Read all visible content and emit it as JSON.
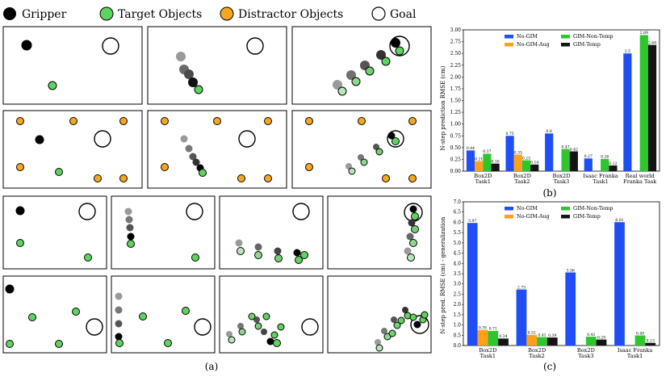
{
  "legend": {
    "items": [
      {
        "label": "Gripper",
        "color": "#000000"
      },
      {
        "label": "Target Objects",
        "color": "#5fd35f"
      },
      {
        "label": "Distractor Objects",
        "color": "#f5a623"
      },
      {
        "label": "Goal",
        "color": "#ffffff"
      }
    ]
  },
  "captions": {
    "a": "(a)",
    "b": "(b)",
    "c": "(c)"
  },
  "colors": {
    "no_gim": "#1f4ef5",
    "no_gim_aug": "#ff9f1a",
    "gim_non_temp": "#2ec52e",
    "gim_temp": "#141414",
    "gripper": "#000000",
    "target": "#5fd35f",
    "distractor": "#f5a623"
  },
  "chart_data": [
    {
      "type": "bar",
      "id": "b",
      "ylabel": "N-step prediction RMSE (cm)",
      "ylim": [
        0,
        3.0
      ],
      "yticks": [
        "0.00",
        "0.25",
        "0.50",
        "0.75",
        "1.00",
        "1.25",
        "1.50",
        "1.75",
        "2.00",
        "2.25",
        "2.50",
        "2.75",
        "3.00"
      ],
      "categories": [
        [
          "Box2D",
          "Task1"
        ],
        [
          "Box2D",
          "Task2"
        ],
        [
          "Box2D",
          "Task3"
        ],
        [
          "Isaac Franka",
          "Task1"
        ],
        [
          "Real world",
          "Franka Task"
        ]
      ],
      "series": [
        {
          "name": "No-GIM",
          "values": [
            0.44,
            0.75,
            0.8,
            0.27,
            2.5
          ],
          "labels": [
            "0.44",
            "0.75",
            "0.8",
            "0.27",
            "2.5"
          ]
        },
        {
          "name": "No-GIM-Aug",
          "values": [
            0.21,
            0.35,
            null,
            null,
            null
          ],
          "labels": [
            "0.21",
            "0.35",
            "",
            "",
            ""
          ]
        },
        {
          "name": "GIM-Non-Temp",
          "values": [
            0.37,
            0.23,
            0.47,
            0.26,
            2.89
          ],
          "labels": [
            "0.37",
            "0.23",
            "0.47",
            "0.26",
            "2.89"
          ]
        },
        {
          "name": "GIM-Temp",
          "values": [
            0.16,
            0.14,
            0.42,
            0.12,
            2.68
          ],
          "labels": [
            "0.16",
            "0.14",
            "0.42",
            "0.12",
            "2.68"
          ]
        }
      ]
    },
    {
      "type": "bar",
      "id": "c",
      "ylabel": "N-step pred. RMSE (cm) - generalization",
      "ylim": [
        0,
        7.0
      ],
      "yticks": [
        "0.0",
        "0.5",
        "1.0",
        "1.5",
        "2.0",
        "2.5",
        "3.0",
        "3.5",
        "4.0",
        "4.5",
        "5.0",
        "5.5",
        "6.0",
        "6.5",
        "7.0"
      ],
      "categories": [
        [
          "Box2D",
          "Task1"
        ],
        [
          "Box2D",
          "Task2"
        ],
        [
          "Box2D",
          "Task3"
        ],
        [
          "Isaac Franka",
          "Task1"
        ]
      ],
      "series": [
        {
          "name": "No-GIM",
          "values": [
            5.97,
            2.73,
            3.56,
            6.01
          ],
          "labels": [
            "5.97",
            "2.73",
            "3.56",
            "6.01"
          ]
        },
        {
          "name": "No-GIM-Aug",
          "values": [
            0.76,
            0.52,
            null,
            null
          ],
          "labels": [
            "0.76",
            "0.52",
            "",
            ""
          ]
        },
        {
          "name": "GIM-Non-Temp",
          "values": [
            0.71,
            0.41,
            0.43,
            0.49
          ],
          "labels": [
            "0.71",
            "0.41",
            "0.43",
            "0.49"
          ]
        },
        {
          "name": "GIM-Temp",
          "values": [
            0.34,
            0.39,
            0.29,
            0.13
          ],
          "labels": [
            "0.34",
            "0.39",
            "0.29",
            "0.13"
          ]
        }
      ]
    }
  ]
}
